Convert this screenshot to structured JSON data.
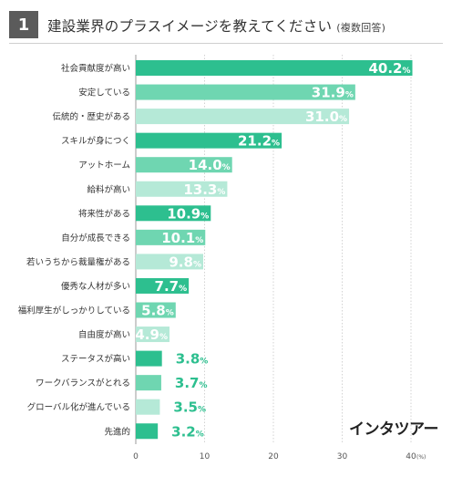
{
  "header": {
    "number": "1",
    "title": "建設業界のプラスイメージを教えてください",
    "subtitle": "(複数回答)"
  },
  "logo": "インタツアー",
  "colors": {
    "dark": "#2dbf8f",
    "mid": "#6fd6b1",
    "light": "#b5e9d7",
    "label_dark": "#2dbf8f"
  },
  "chart_data": {
    "type": "bar",
    "orientation": "horizontal",
    "categories": [
      "社会貢献度が高い",
      "安定している",
      "伝統的・歴史がある",
      "スキルが身につく",
      "アットホーム",
      "給料が高い",
      "将来性がある",
      "自分が成長できる",
      "若いうちから裁量権がある",
      "優秀な人材が多い",
      "福利厚生がしっかりしている",
      "自由度が高い",
      "ステータスが高い",
      "ワークバランスがとれる",
      "グローバル化が進んでいる",
      "先進的"
    ],
    "values": [
      40.2,
      31.9,
      31.0,
      21.2,
      14.0,
      13.3,
      10.9,
      10.1,
      9.8,
      7.7,
      5.8,
      4.9,
      3.8,
      3.7,
      3.5,
      3.2
    ],
    "shades": [
      "dark",
      "mid",
      "light",
      "dark",
      "mid",
      "light",
      "dark",
      "mid",
      "light",
      "dark",
      "mid",
      "light",
      "dark",
      "mid",
      "light",
      "dark"
    ],
    "value_labels": [
      "40.2",
      "31.9",
      "31.0",
      "21.2",
      "14.0",
      "13.3",
      "10.9",
      "10.1",
      "9.8",
      "7.7",
      "5.8",
      "4.9",
      "3.8",
      "3.7",
      "3.5",
      "3.2"
    ],
    "value_suffix": "%",
    "xlim": [
      0,
      40
    ],
    "xticks": [
      0,
      10,
      20,
      30,
      40
    ],
    "xunit": "(%)",
    "grid": true
  }
}
